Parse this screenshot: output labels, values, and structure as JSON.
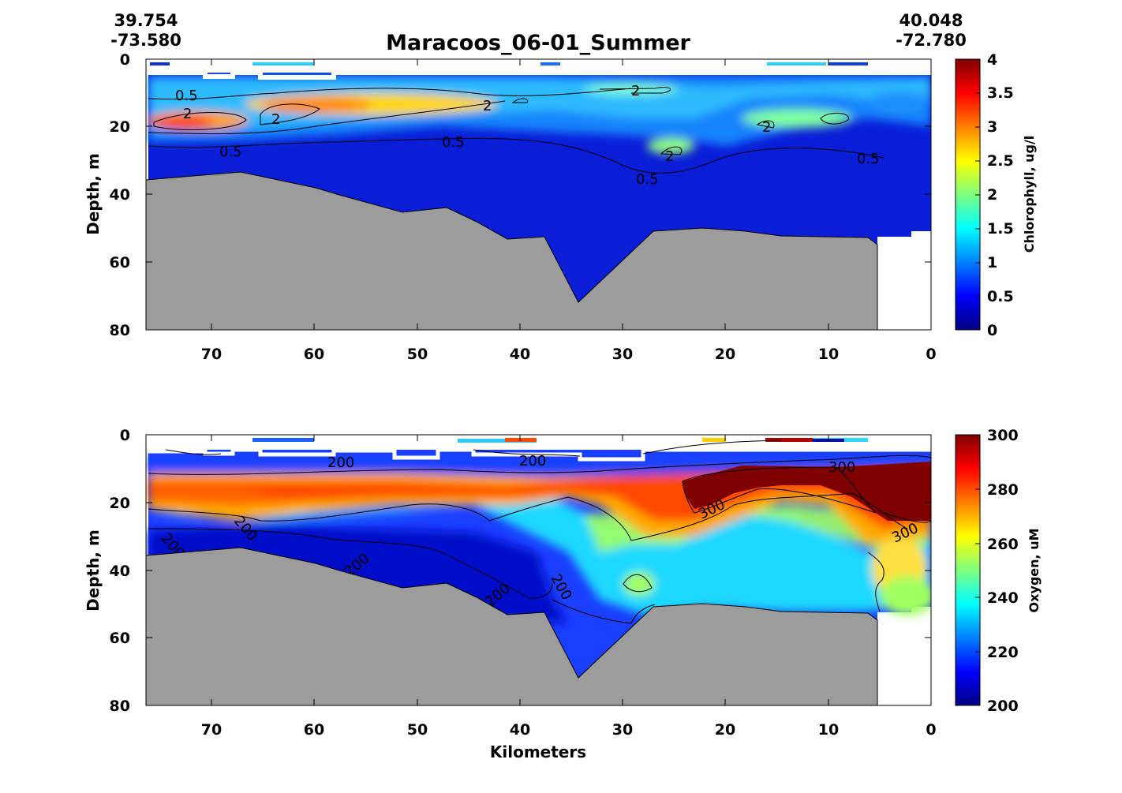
{
  "figure": {
    "title": "Maracoos_06-01_Summer",
    "start_coord": {
      "lat": "39.754",
      "lon": "-73.580"
    },
    "end_coord": {
      "lat": "40.048",
      "lon": "-72.780"
    }
  },
  "chart_data": [
    {
      "type": "heatmap",
      "name": "chlorophyll-section",
      "variable": "Chlorophyll",
      "colorbar_label": "Chlorophyll, ug/l",
      "ylabel": "Depth, m",
      "xlabel": "",
      "xlim": [
        76.5,
        0
      ],
      "ylim": [
        80,
        0
      ],
      "x_ticks": [
        "70",
        "60",
        "50",
        "40",
        "30",
        "20",
        "10",
        "0"
      ],
      "y_ticks": [
        "0",
        "20",
        "40",
        "60",
        "80"
      ],
      "colorbar_ticks": [
        "0",
        "0.5",
        "1",
        "1.5",
        "2",
        "2.5",
        "3",
        "3.5",
        "4"
      ],
      "color_range": [
        0,
        4
      ],
      "colormap": "jet",
      "contour_levels": [
        0.5,
        2
      ],
      "contour_labels": [
        "0.5",
        "2",
        "2",
        "0.5",
        "0.5",
        "2",
        "2",
        "2",
        "0.5",
        "2",
        "0.5"
      ]
    },
    {
      "type": "heatmap",
      "name": "oxygen-section",
      "variable": "Oxygen",
      "colorbar_label": "Oxygen, uM",
      "ylabel": "Depth, m",
      "xlabel": "Kilometers",
      "xlim": [
        76.5,
        0
      ],
      "ylim": [
        80,
        0
      ],
      "x_ticks": [
        "70",
        "60",
        "50",
        "40",
        "30",
        "20",
        "10",
        "0"
      ],
      "y_ticks": [
        "0",
        "20",
        "40",
        "60",
        "80"
      ],
      "colorbar_ticks": [
        "200",
        "220",
        "240",
        "260",
        "280",
        "300"
      ],
      "color_range": [
        200,
        300
      ],
      "colormap": "jet",
      "contour_levels": [
        200,
        300
      ],
      "contour_labels": [
        "200",
        "200",
        "200",
        "200",
        "200",
        "200",
        "200",
        "300",
        "300",
        "300"
      ]
    }
  ],
  "colors": {
    "seafloor": "#9c9c9c",
    "jet_low": "#00007f",
    "jet_high": "#7f0000"
  }
}
